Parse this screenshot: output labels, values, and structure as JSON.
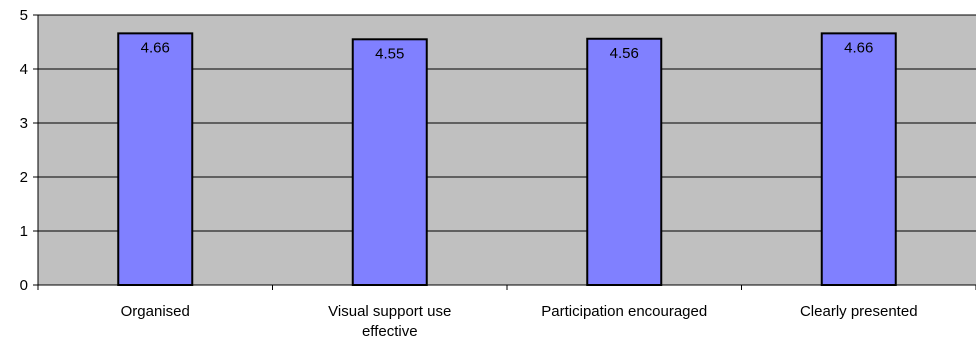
{
  "chart_data": {
    "type": "bar",
    "categories": [
      [
        "Organised"
      ],
      [
        "Visual support use",
        "effective"
      ],
      [
        "Participation encouraged"
      ],
      [
        "Clearly presented"
      ]
    ],
    "values": [
      4.66,
      4.55,
      4.56,
      4.66
    ],
    "data_labels": [
      "4.66",
      "4.55",
      "4.56",
      "4.66"
    ],
    "ylim": [
      0,
      5
    ],
    "yticks": [
      "0",
      "1",
      "2",
      "3",
      "4",
      "5"
    ],
    "grid": true,
    "legend": "none",
    "colors": {
      "plot_background": "#c0c0c0",
      "bar_fill": "#8080ff",
      "bar_stroke": "#000000",
      "gridline": "#000000"
    }
  }
}
